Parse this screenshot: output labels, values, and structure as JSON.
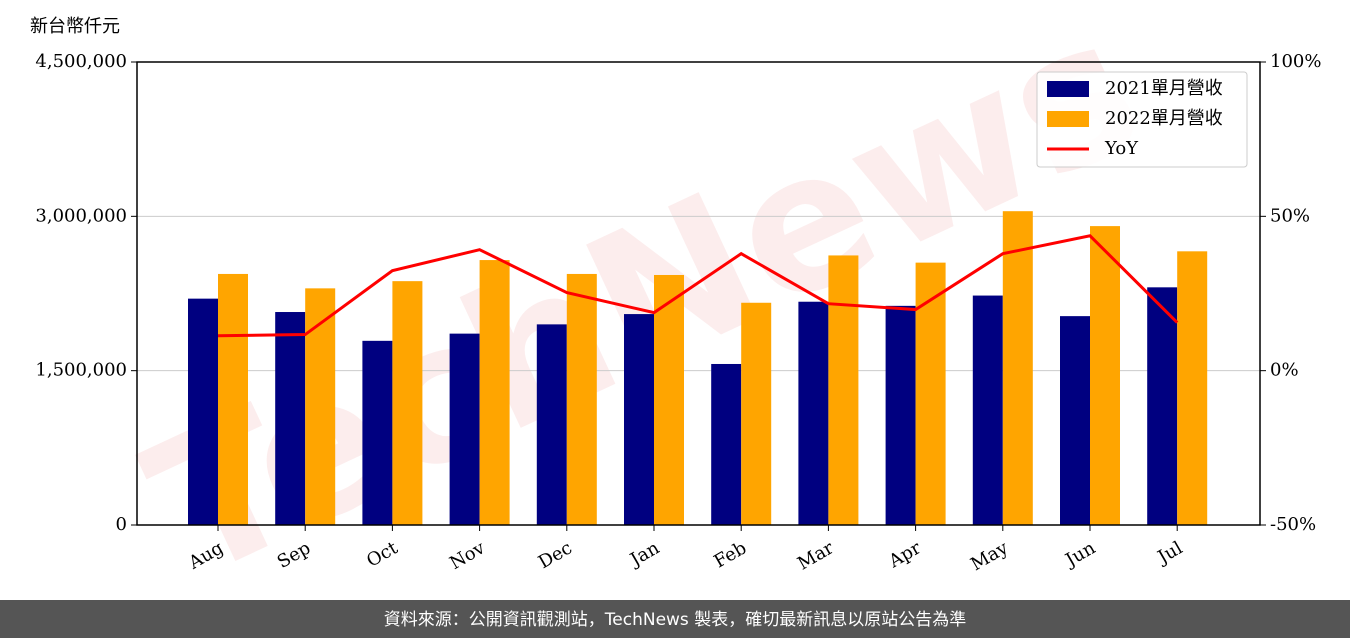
{
  "chart_data": {
    "type": "bar",
    "ylabel": "新台幣仟元",
    "watermark": "TechNews",
    "source": "資料來源：公開資訊觀測站，TechNews 製表，確切最新訊息以原站公告為準",
    "categories": [
      "Aug",
      "Sep",
      "Oct",
      "Nov",
      "Dec",
      "Jan",
      "Feb",
      "Mar",
      "Apr",
      "May",
      "Jun",
      "Jul"
    ],
    "series": [
      {
        "name": "2021單月營收",
        "color": "#000080",
        "type": "bar",
        "values": [
          2200000,
          2070000,
          1790000,
          1860000,
          1950000,
          2050000,
          1565000,
          2170000,
          2130000,
          2230000,
          2030000,
          2310000
        ]
      },
      {
        "name": "2022單月營收",
        "color": "#ffa500",
        "type": "bar",
        "values": [
          2440000,
          2300000,
          2370000,
          2575000,
          2440000,
          2430000,
          2160000,
          2620000,
          2550000,
          3050000,
          2905000,
          2660000
        ]
      },
      {
        "name": "YoY",
        "color": "#ff0000",
        "type": "line",
        "axis": "y2",
        "values": [
          11.3,
          11.7,
          32.4,
          39.2,
          25.3,
          18.8,
          37.9,
          21.7,
          19.8,
          37.9,
          43.7,
          15.6
        ]
      }
    ],
    "ylim": [
      0,
      4500000
    ],
    "yticks": [
      0,
      {
        "value": 1500000,
        "label": "1,500,000"
      },
      {
        "value": 3000000,
        "label": "3,000,000"
      },
      {
        "value": 4500000,
        "label": "4,500,000"
      }
    ],
    "y2lim": [
      -50,
      100
    ],
    "y2ticks": [
      {
        "value": -50,
        "label": "-50%"
      },
      {
        "value": 0,
        "label": "0%"
      },
      {
        "value": 50,
        "label": "50%"
      },
      {
        "value": 100,
        "label": "100%"
      }
    ],
    "grid": true,
    "legend": "upper right"
  }
}
